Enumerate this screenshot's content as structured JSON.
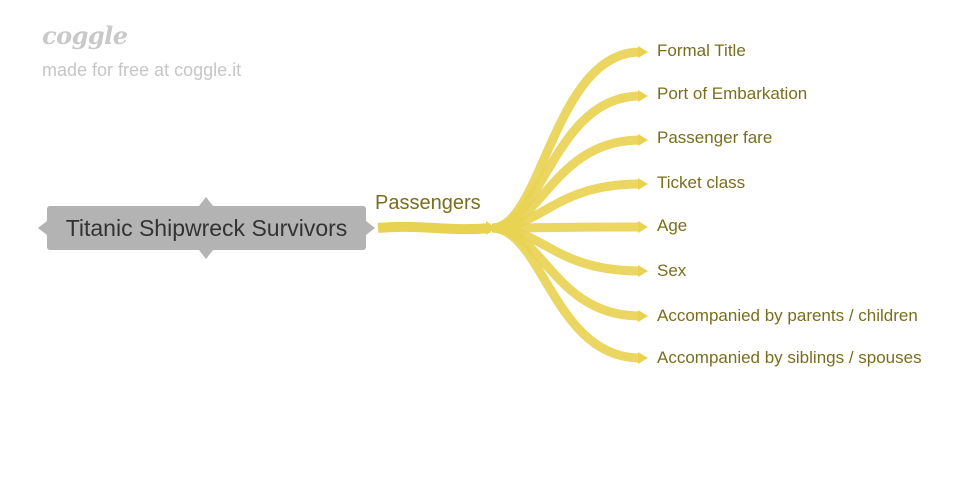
{
  "brand": {
    "logo": "coggle",
    "tagline": "made for free at coggle.it"
  },
  "colors": {
    "branch": "#e8d252",
    "branch_light": "#efdc70",
    "root_fill": "#b3b3b3",
    "root_text": "#333333",
    "label_text": "#7a6e1c",
    "brand_text": "#c6c6c6"
  },
  "mindmap": {
    "root": "Titanic Shipwreck Survivors",
    "branch": "Passengers",
    "leaves": [
      "Formal Title",
      "Port of Embarkation",
      "Passenger fare",
      "Ticket class",
      "Age",
      "Sex",
      "Accompanied by parents / children",
      "Accompanied by siblings / spouses"
    ]
  }
}
